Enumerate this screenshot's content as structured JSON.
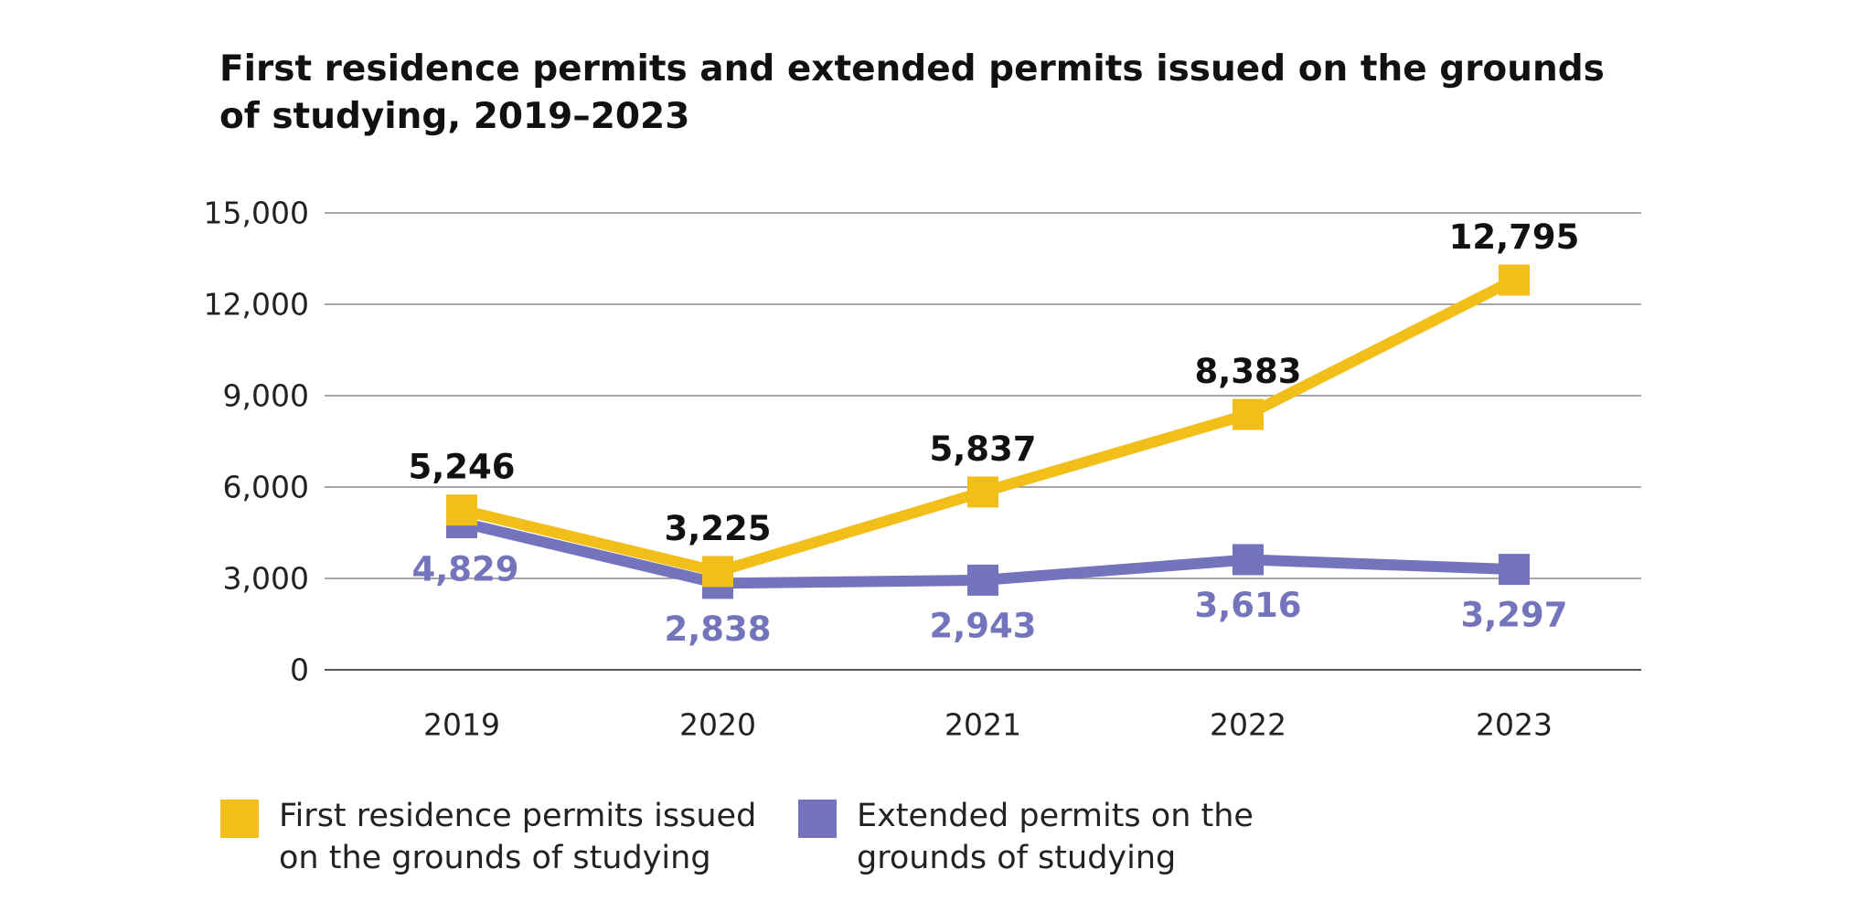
{
  "chart_data": {
    "type": "line",
    "title": "First residence permits and extended permits issued on the grounds of studying, 2019–2023",
    "categories": [
      "2019",
      "2020",
      "2021",
      "2022",
      "2023"
    ],
    "xlabel": "",
    "ylabel": "",
    "ylim": [
      0,
      15000
    ],
    "yticks": [
      0,
      3000,
      6000,
      9000,
      12000,
      15000
    ],
    "ytick_labels": [
      "0",
      "3,000",
      "6,000",
      "9,000",
      "12,000",
      "15,000"
    ],
    "grid": true,
    "legend_position": "bottom-left",
    "series": [
      {
        "name": "First residence permits issued on the grounds of studying",
        "values": [
          5246,
          3225,
          5837,
          8383,
          12795
        ],
        "labels": [
          "5,246",
          "3,225",
          "5,837",
          "8,383",
          "12,795"
        ],
        "color": "#F2BE1A",
        "label_color": "#111111",
        "marker": "square"
      },
      {
        "name": "Extended permits on the grounds of studying",
        "values": [
          4829,
          2838,
          2943,
          3616,
          3297
        ],
        "labels": [
          "4,829",
          "2,838",
          "2,943",
          "3,616",
          "3,297"
        ],
        "color": "#7474BC",
        "label_color": "#7474BC",
        "marker": "square"
      }
    ]
  }
}
